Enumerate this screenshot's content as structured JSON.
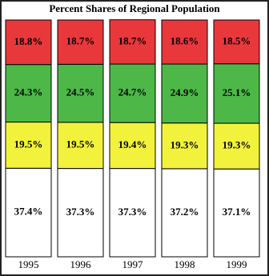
{
  "chart_data": {
    "type": "stacked-bar",
    "title": "Percent Shares of Regional Population",
    "categories": [
      "1995",
      "1996",
      "1997",
      "1998",
      "1999"
    ],
    "ylim": [
      0,
      100
    ],
    "series": [
      {
        "color": "#ffffff",
        "values": [
          37.4,
          37.3,
          37.3,
          37.2,
          37.1
        ],
        "value_labels": [
          "37.4%",
          "37.3%",
          "37.3%",
          "37.2%",
          "37.1%"
        ]
      },
      {
        "color": "#f2f23c",
        "values": [
          19.5,
          19.5,
          19.4,
          19.3,
          19.3
        ],
        "value_labels": [
          "19.5%",
          "19.5%",
          "19.4%",
          "19.3%",
          "19.3%"
        ]
      },
      {
        "color": "#4db848",
        "values": [
          24.3,
          24.5,
          24.7,
          24.9,
          25.1
        ],
        "value_labels": [
          "24.3%",
          "24.5%",
          "24.7%",
          "24.9%",
          "25.1%"
        ]
      },
      {
        "color": "#e8383c",
        "values": [
          18.8,
          18.7,
          18.7,
          18.6,
          18.5
        ],
        "value_labels": [
          "18.8%",
          "18.7%",
          "18.7%",
          "18.6%",
          "18.5%"
        ]
      }
    ]
  }
}
